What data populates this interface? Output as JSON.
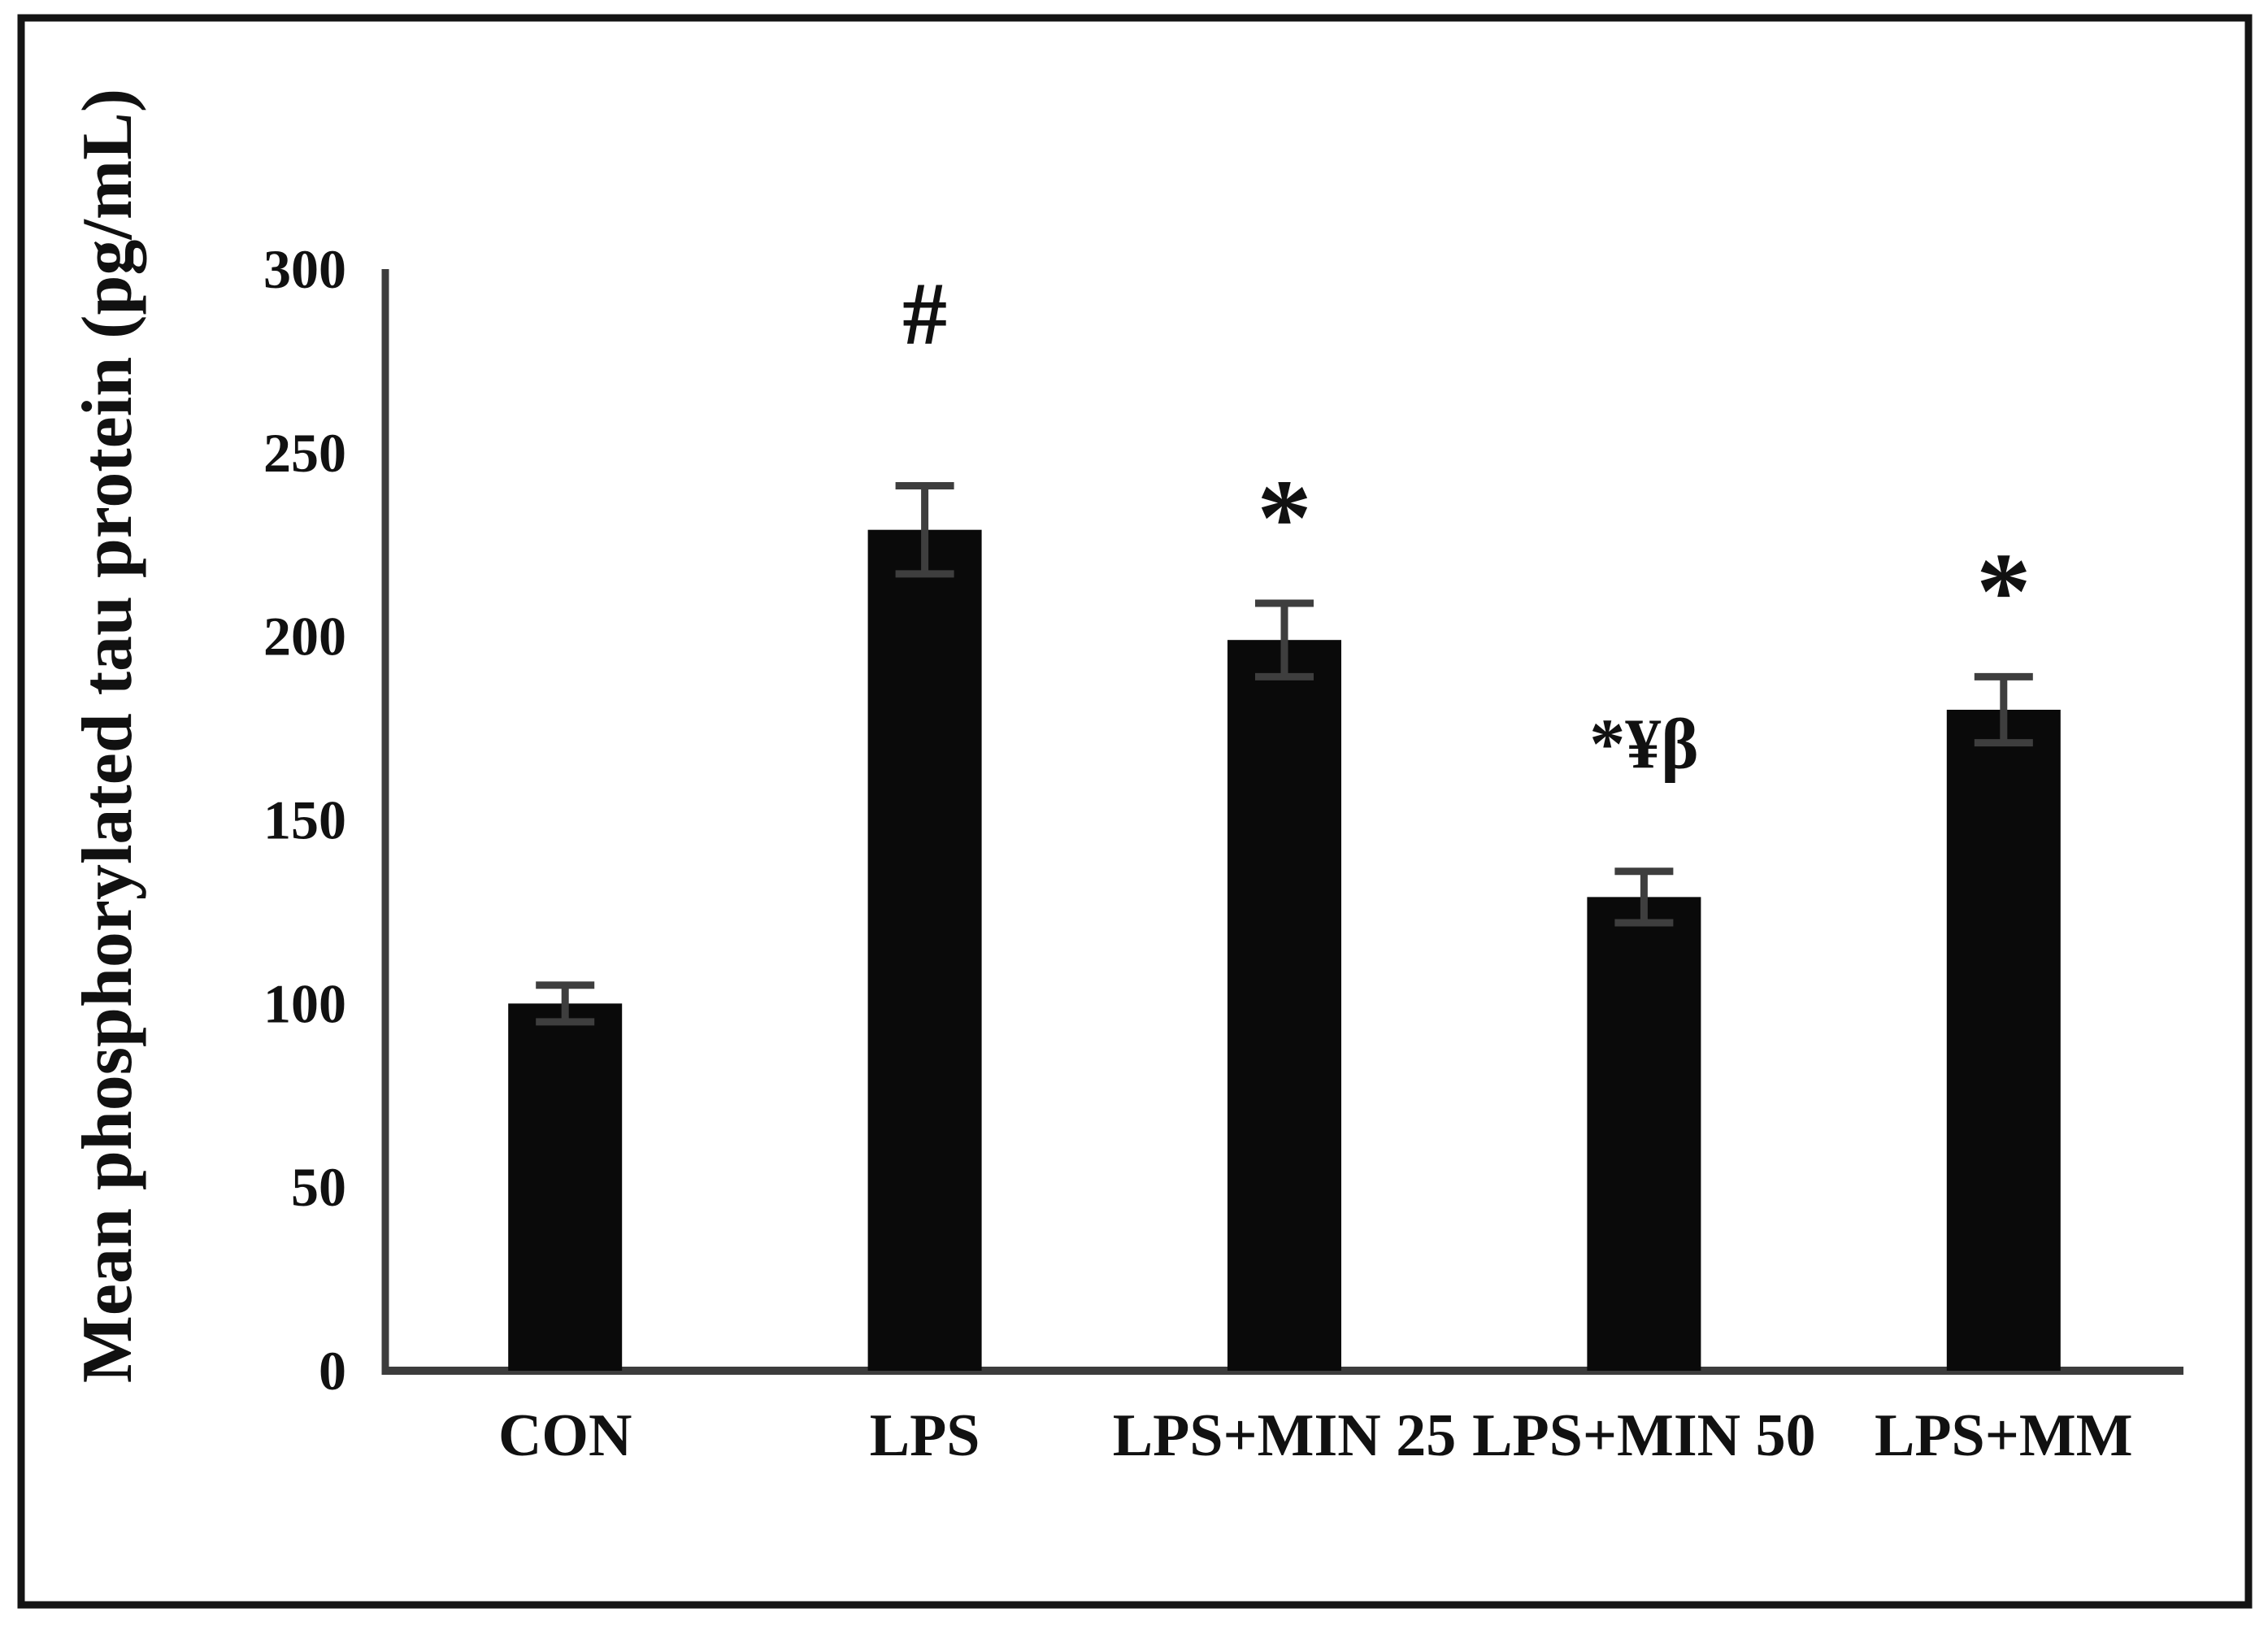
{
  "chart_data": {
    "type": "bar",
    "title": "",
    "xlabel": "",
    "ylabel": "Mean phosphorylated tau protein (pg/mL)",
    "categories": [
      "CON",
      "LPS",
      "LPS+MIN 25",
      "LPS+MIN 50",
      "LPS+MM"
    ],
    "values": [
      100,
      229,
      199,
      129,
      180
    ],
    "errors": [
      5,
      12,
      10,
      7,
      9
    ],
    "annotations": [
      "",
      "#",
      "*",
      "*¥β",
      "*"
    ],
    "yticks": [
      0,
      50,
      100,
      150,
      200,
      250,
      300
    ],
    "ylim": [
      0,
      300
    ],
    "ytick_step": 50,
    "grid": false,
    "legend": "none",
    "bar_color": "#0a0a0a",
    "error_bar_color": "#3e3e3e",
    "axis_color": "#3c3c3c",
    "text_color": "#111111",
    "frame_color": "#141414",
    "background": "#ffffff"
  }
}
